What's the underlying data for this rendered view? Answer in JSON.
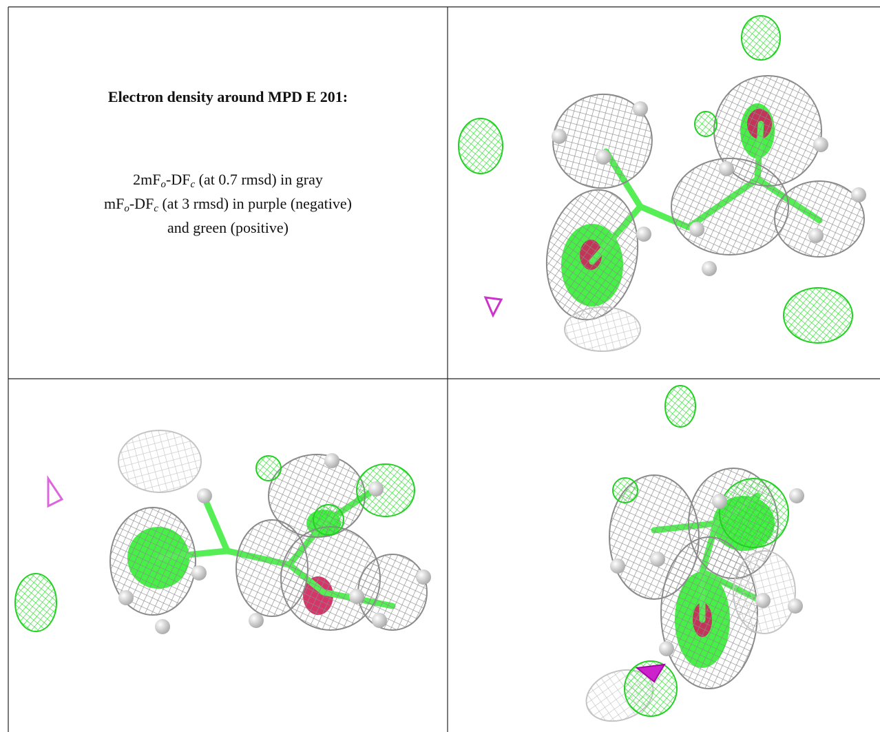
{
  "figure": {
    "title": "Electron density around MPD E 201:",
    "legend": [
      [
        "2mF",
        "o",
        "-DF",
        "c",
        " (at 0.7 rmsd) in gray"
      ],
      [
        "mF",
        "o",
        "-DF",
        "c",
        " (at 3 rmsd) in purple (negative)"
      ],
      [
        "and green (positive)"
      ]
    ]
  }
}
